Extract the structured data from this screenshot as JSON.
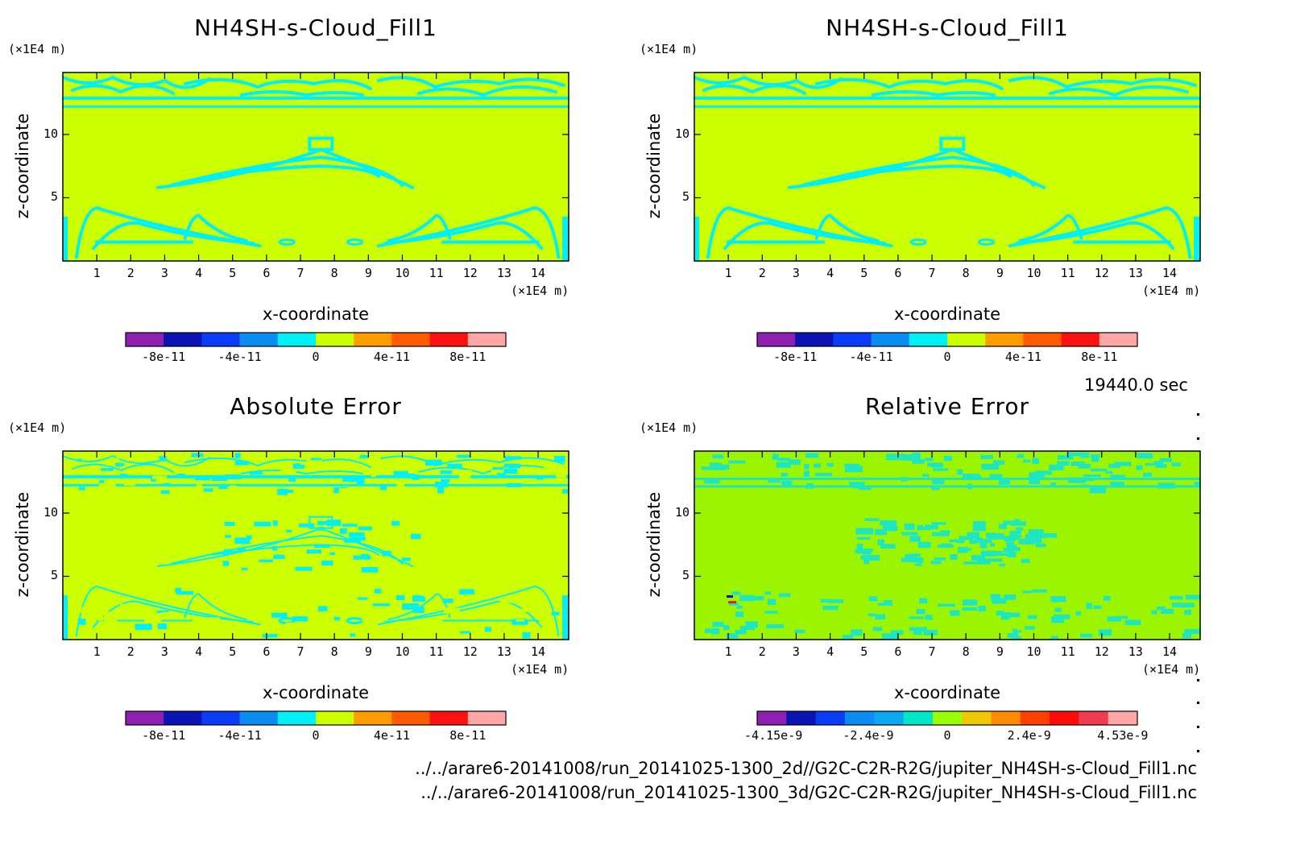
{
  "panels": [
    {
      "title": "NH4SH-s-Cloud_Fill1",
      "field": "model",
      "z_unit": "(×1E4 m)",
      "x_unit": "(×1E4 m)",
      "ylabel": "z-coordinate",
      "xlabel": "x-coordinate",
      "x_ticks": [
        "1",
        "2",
        "3",
        "4",
        "5",
        "6",
        "7",
        "8",
        "9",
        "10",
        "11",
        "12",
        "13",
        "14"
      ],
      "y_ticks": [
        "5",
        "10"
      ],
      "colorbar": {
        "colors": [
          "#8e1fb0",
          "#0a14b4",
          "#0a3cf5",
          "#0a8cf0",
          "#00f0f5",
          "#ccff00",
          "#ff9c00",
          "#ff5a00",
          "#ff1010",
          "#ffa6a6"
        ],
        "tick_labels": [
          "-8e-11",
          "-4e-11",
          "0",
          "4e-11",
          "8e-11"
        ]
      }
    },
    {
      "title": "NH4SH-s-Cloud_Fill1",
      "field": "model",
      "z_unit": "(×1E4 m)",
      "x_unit": "(×1E4 m)",
      "ylabel": "z-coordinate",
      "xlabel": "x-coordinate",
      "x_ticks": [
        "1",
        "2",
        "3",
        "4",
        "5",
        "6",
        "7",
        "8",
        "9",
        "10",
        "11",
        "12",
        "13",
        "14"
      ],
      "y_ticks": [
        "5",
        "10"
      ],
      "colorbar": {
        "colors": [
          "#8e1fb0",
          "#0a14b4",
          "#0a3cf5",
          "#0a8cf0",
          "#00f0f5",
          "#ccff00",
          "#ff9c00",
          "#ff5a00",
          "#ff1010",
          "#ffa6a6"
        ],
        "tick_labels": [
          "-8e-11",
          "-4e-11",
          "0",
          "4e-11",
          "8e-11"
        ]
      }
    },
    {
      "title": "Absolute Error",
      "field": "abs",
      "z_unit": "(×1E4 m)",
      "x_unit": "(×1E4 m)",
      "ylabel": "z-coordinate",
      "xlabel": "x-coordinate",
      "x_ticks": [
        "1",
        "2",
        "3",
        "4",
        "5",
        "6",
        "7",
        "8",
        "9",
        "10",
        "11",
        "12",
        "13",
        "14"
      ],
      "y_ticks": [
        "5",
        "10"
      ],
      "colorbar": {
        "colors": [
          "#8e1fb0",
          "#0a14b4",
          "#0a3cf5",
          "#0a8cf0",
          "#00f0f5",
          "#ccff00",
          "#ff9c00",
          "#ff5a00",
          "#ff1010",
          "#ffa6a6"
        ],
        "tick_labels": [
          "-8e-11",
          "-4e-11",
          "0",
          "4e-11",
          "8e-11"
        ]
      }
    },
    {
      "title": "Relative Error",
      "field": "rel",
      "z_unit": "(×1E4 m)",
      "x_unit": "(×1E4 m)",
      "ylabel": "z-coordinate",
      "xlabel": "x-coordinate",
      "x_ticks": [
        "1",
        "2",
        "3",
        "4",
        "5",
        "6",
        "7",
        "8",
        "9",
        "10",
        "11",
        "12",
        "13",
        "14"
      ],
      "y_ticks": [
        "5",
        "10"
      ],
      "colorbar": {
        "colors": [
          "#8e1fb0",
          "#0a14b4",
          "#0a3cf5",
          "#0a8cf0",
          "#0aa8f0",
          "#00e6c8",
          "#99ff00",
          "#f0c800",
          "#ff8c00",
          "#ff4000",
          "#ff0a0a",
          "#f03c50",
          "#ffa6a6"
        ],
        "tick_labels": [
          "-4.15e-9",
          "-2.4e-9",
          "0",
          "2.4e-9",
          "4.53e-9"
        ]
      }
    }
  ],
  "time_label": "19440.0 sec",
  "footer": [
    "../../arare6-20141008/run_20141025-1300_2d//G2C-C2R-R2G/jupiter_NH4SH-s-Cloud_Fill1.nc",
    "../../arare6-20141008/run_20141025-1300_3d/G2C-C2R-R2G/jupiter_NH4SH-s-Cloud_Fill1.nc"
  ],
  "chart_data": [
    {
      "type": "heatmap",
      "title": "NH4SH-s-Cloud_Fill1",
      "xlabel": "x-coordinate",
      "ylabel": "z-coordinate",
      "x_unit": "(×1E4 m)",
      "z_unit": "(×1E4 m)",
      "xlim": [
        0,
        14.9
      ],
      "ylim": [
        0,
        14.9
      ],
      "dominant_value": "0 to 2e-11 (yellow-green)",
      "secondary_value": "-2e-11 to 0 (cyan) in cloud-structure bands near z 0-4, 6-10, 12-15",
      "colorbar_ticks": [
        -8e-11,
        -4e-11,
        0,
        4e-11,
        8e-11
      ]
    },
    {
      "type": "heatmap",
      "title": "NH4SH-s-Cloud_Fill1",
      "xlabel": "x-coordinate",
      "ylabel": "z-coordinate",
      "x_unit": "(×1E4 m)",
      "z_unit": "(×1E4 m)",
      "xlim": [
        0,
        14.9
      ],
      "ylim": [
        0,
        14.9
      ],
      "dominant_value": "0 to 2e-11 (yellow-green)",
      "secondary_value": "-2e-11 to 0 (cyan)",
      "colorbar_ticks": [
        -8e-11,
        -4e-11,
        0,
        4e-11,
        8e-11
      ]
    },
    {
      "type": "heatmap",
      "title": "Absolute Error",
      "xlabel": "x-coordinate",
      "ylabel": "z-coordinate",
      "x_unit": "(×1E4 m)",
      "z_unit": "(×1E4 m)",
      "xlim": [
        0,
        14.9
      ],
      "ylim": [
        0,
        14.9
      ],
      "dominant_value": "0 to 2e-11 (yellow-green)",
      "secondary_value": "-2e-11 to 0 (cyan), sparse",
      "colorbar_ticks": [
        -8e-11,
        -4e-11,
        0,
        4e-11,
        8e-11
      ]
    },
    {
      "type": "heatmap",
      "title": "Relative Error",
      "xlabel": "x-coordinate",
      "ylabel": "z-coordinate",
      "x_unit": "(×1E4 m)",
      "z_unit": "(×1E4 m)",
      "xlim": [
        0,
        14.9
      ],
      "ylim": [
        0,
        14.9
      ],
      "dominant_value": "0 to ~0.8e-9 (green)",
      "secondary_value": "slightly negative (teal) in cloud bands; isolated extreme cells near x 1, z 3",
      "colorbar_ticks": [
        -4.15e-09,
        -2.4e-09,
        0,
        2.4e-09,
        4.53e-09
      ]
    }
  ]
}
